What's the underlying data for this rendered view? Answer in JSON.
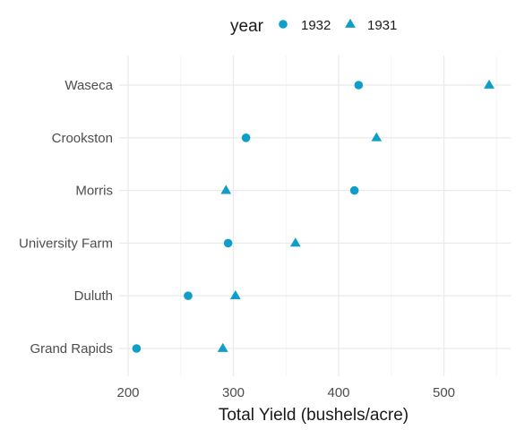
{
  "chart_data": {
    "type": "scatter",
    "xlabel": "Total Yield (bushels/acre)",
    "ylabel": "",
    "xlim": [
      192,
      570
    ],
    "xticks": [
      200,
      300,
      400,
      500
    ],
    "categories": [
      "Waseca",
      "Crookston",
      "Morris",
      "University Farm",
      "Duluth",
      "Grand Rapids"
    ],
    "series": [
      {
        "name": "1932",
        "marker": "circle",
        "color": "#0f9ec8",
        "values": [
          419,
          312,
          415,
          295,
          257,
          208
        ]
      },
      {
        "name": "1931",
        "marker": "triangle",
        "color": "#0f9ec8",
        "values": [
          543,
          436,
          293,
          359,
          302,
          290
        ]
      }
    ],
    "legend": {
      "title": "year",
      "position": "top"
    },
    "grid": true
  }
}
